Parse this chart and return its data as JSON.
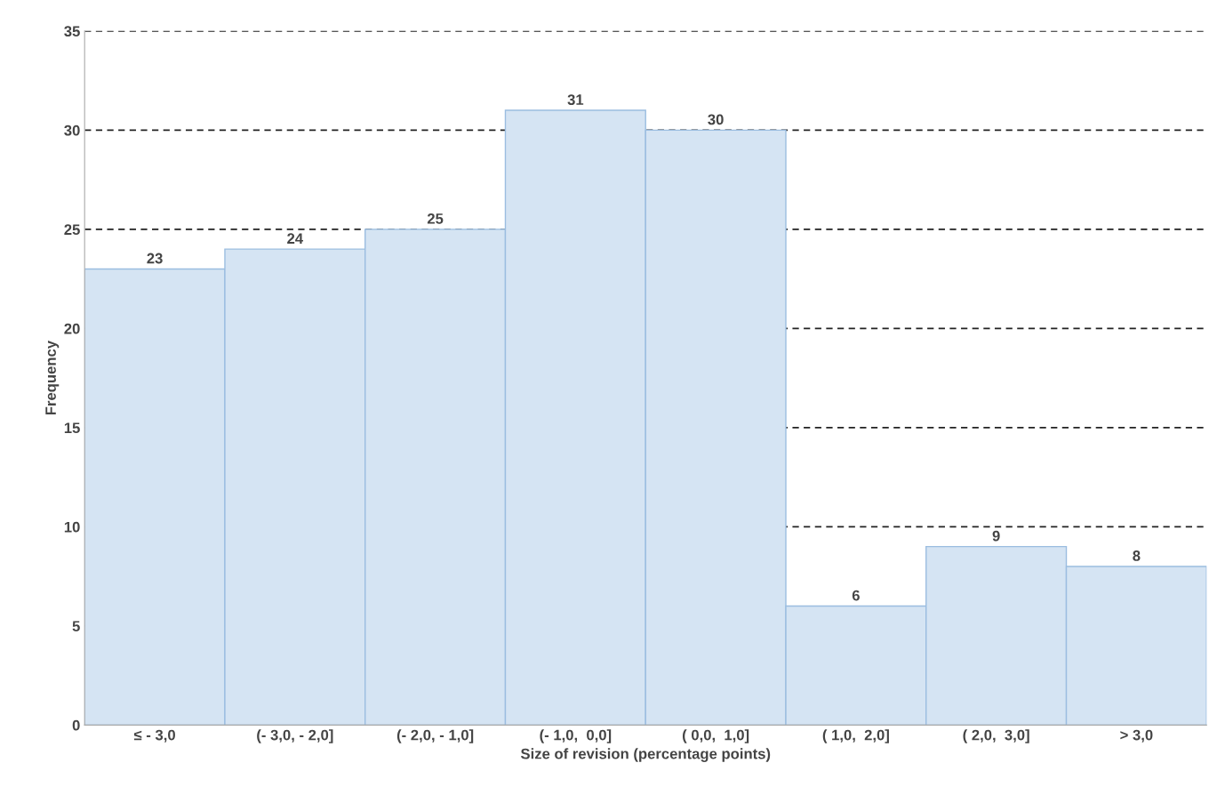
{
  "chart_data": {
    "type": "bar",
    "xlabel": "Size of revision (percentage points)",
    "ylabel": "Frequency",
    "categories": [
      "≤ - 3,0",
      "(- 3,0, - 2,0]",
      "(- 2,0, - 1,0]",
      "(- 1,0,  0,0]",
      "( 0,0,  1,0]",
      "( 1,0,  2,0]",
      "( 2,0,  3,0]",
      "> 3,0"
    ],
    "values": [
      23,
      24,
      25,
      31,
      30,
      6,
      9,
      8
    ],
    "color": "#d5e4f3",
    "ylim": [
      0,
      35
    ],
    "yticks": [
      0,
      5,
      10,
      15,
      20,
      25,
      30,
      35
    ],
    "grid": "y",
    "line_style": "dashed",
    "data_labels": true
  }
}
